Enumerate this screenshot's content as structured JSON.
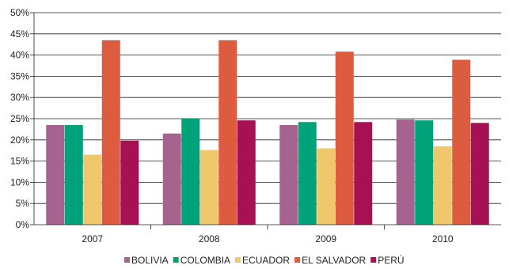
{
  "chart_data": {
    "type": "bar",
    "categories": [
      "2007",
      "2008",
      "2009",
      "2010"
    ],
    "y_ticks": [
      "0%",
      "5%",
      "10%",
      "15%",
      "20%",
      "25%",
      "30%",
      "35%",
      "40%",
      "45%",
      "50%"
    ],
    "ylim": [
      0,
      50
    ],
    "grid": true,
    "legend_position": "bottom",
    "series": [
      {
        "name": "BOLIVIA",
        "color": "#A6638F",
        "values": [
          23.5,
          21.5,
          23.5,
          24.8
        ]
      },
      {
        "name": "COLOMBIA",
        "color": "#00A27A",
        "values": [
          23.5,
          25.0,
          24.2,
          24.6
        ]
      },
      {
        "name": "ECUADOR",
        "color": "#EFC86E",
        "values": [
          16.5,
          17.6,
          18.0,
          18.5
        ]
      },
      {
        "name": "EL SALVADOR",
        "color": "#DD5B3E",
        "values": [
          43.5,
          43.5,
          40.8,
          38.9
        ]
      },
      {
        "name": "PERÚ",
        "color": "#A51153",
        "values": [
          19.8,
          24.6,
          24.2,
          24.0
        ]
      }
    ]
  }
}
